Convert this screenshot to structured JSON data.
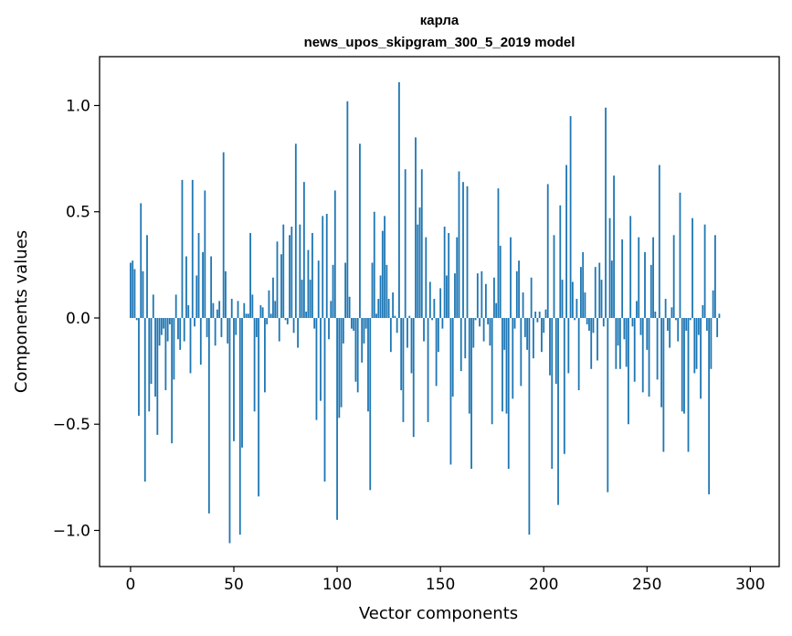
{
  "chart_data": {
    "type": "bar",
    "title": "карла",
    "subtitle": "news_upos_skipgram_300_5_2019 model",
    "xlabel": "Vector components",
    "ylabel": "Components values",
    "xlim": [
      -15,
      314
    ],
    "ylim": [
      -1.17,
      1.23
    ],
    "xticks": [
      0,
      50,
      100,
      150,
      200,
      250,
      300
    ],
    "yticks": [
      -1.0,
      -0.5,
      0.0,
      0.5,
      1.0
    ],
    "xtick_labels": [
      "0",
      "50",
      "100",
      "150",
      "200",
      "250",
      "300"
    ],
    "ytick_labels": [
      "−1.0",
      "−0.5",
      "0.0",
      "0.5",
      "1.0"
    ],
    "grid": false,
    "bar_color": "#1f77b4",
    "values": [
      0.26,
      0.27,
      0.23,
      -0.01,
      -0.46,
      0.54,
      0.22,
      -0.77,
      0.39,
      -0.44,
      -0.31,
      0.11,
      -0.37,
      -0.55,
      -0.13,
      -0.08,
      -0.05,
      -0.34,
      -0.11,
      -0.03,
      -0.59,
      -0.29,
      0.11,
      -0.1,
      -0.15,
      0.65,
      -0.11,
      0.29,
      0.06,
      -0.26,
      0.65,
      -0.04,
      0.2,
      0.4,
      -0.22,
      0.31,
      0.6,
      -0.09,
      -0.92,
      0.29,
      0.07,
      -0.13,
      0.04,
      0.08,
      -0.09,
      0.78,
      0.22,
      -0.12,
      -1.06,
      0.09,
      -0.58,
      -0.08,
      0.08,
      -1.02,
      -0.61,
      0.07,
      0.02,
      0.02,
      0.4,
      0.11,
      -0.44,
      -0.09,
      -0.84,
      0.06,
      0.05,
      -0.35,
      -0.03,
      0.13,
      0.02,
      0.19,
      0.08,
      0.36,
      -0.11,
      0.3,
      0.44,
      -0.01,
      -0.03,
      0.39,
      0.43,
      -0.07,
      0.82,
      -0.14,
      0.44,
      0.18,
      0.64,
      0.03,
      0.32,
      0.18,
      0.4,
      -0.05,
      -0.48,
      0.27,
      -0.39,
      0.48,
      -0.77,
      0.49,
      -0.1,
      0.08,
      0.25,
      0.6,
      -0.95,
      -0.47,
      -0.42,
      -0.12,
      0.26,
      1.02,
      0.1,
      -0.05,
      -0.06,
      -0.3,
      -0.35,
      0.82,
      -0.21,
      -0.12,
      -0.05,
      -0.44,
      -0.81,
      0.26,
      0.5,
      0.02,
      0.09,
      0.2,
      0.41,
      0.48,
      0.25,
      0.09,
      -0.16,
      0.12,
      0.01,
      -0.07,
      1.11,
      -0.34,
      -0.49,
      0.7,
      -0.14,
      0.01,
      -0.26,
      -0.56,
      0.85,
      0.44,
      0.52,
      0.7,
      -0.11,
      0.38,
      -0.49,
      0.17,
      -0.01,
      0.09,
      -0.32,
      -0.16,
      0.14,
      -0.05,
      0.43,
      0.2,
      0.4,
      -0.69,
      -0.37,
      0.21,
      0.38,
      0.69,
      -0.25,
      0.64,
      -0.19,
      0.62,
      -0.45,
      -0.71,
      -0.14,
      -0.01,
      0.21,
      -0.04,
      0.22,
      -0.11,
      0.16,
      -0.03,
      -0.13,
      -0.5,
      0.19,
      0.07,
      0.61,
      0.34,
      -0.44,
      -0.15,
      -0.45,
      -0.71,
      0.38,
      -0.38,
      -0.05,
      0.22,
      0.27,
      -0.32,
      0.12,
      -0.09,
      -0.15,
      -1.02,
      0.19,
      -0.19,
      0.03,
      -0.02,
      0.03,
      -0.16,
      -0.07,
      0.04,
      0.63,
      -0.27,
      -0.71,
      0.39,
      -0.31,
      -0.88,
      0.53,
      0.18,
      -0.64,
      0.72,
      -0.26,
      0.95,
      0.17,
      -0.01,
      0.09,
      -0.34,
      0.24,
      0.31,
      0.12,
      -0.03,
      -0.06,
      -0.24,
      -0.07,
      0.24,
      -0.2,
      0.26,
      0.18,
      -0.04,
      0.99,
      -0.82,
      0.47,
      0.27,
      0.67,
      -0.24,
      -0.13,
      -0.24,
      0.37,
      -0.1,
      -0.23,
      -0.5,
      0.48,
      -0.04,
      -0.3,
      0.08,
      0.38,
      -0.08,
      -0.35,
      0.31,
      -0.15,
      -0.37,
      0.25,
      0.38,
      0.03,
      -0.29,
      0.72,
      -0.42,
      -0.63,
      0.09,
      -0.06,
      -0.14,
      0.05,
      0.39,
      -0.01,
      -0.11,
      0.59,
      -0.44,
      -0.45,
      -0.06,
      -0.63,
      -0.01,
      0.47,
      -0.26,
      -0.24,
      -0.08,
      -0.38,
      0.06,
      0.44,
      -0.06,
      -0.83,
      -0.24,
      0.13,
      0.39,
      -0.09,
      0.02
    ],
    "annotations": []
  }
}
